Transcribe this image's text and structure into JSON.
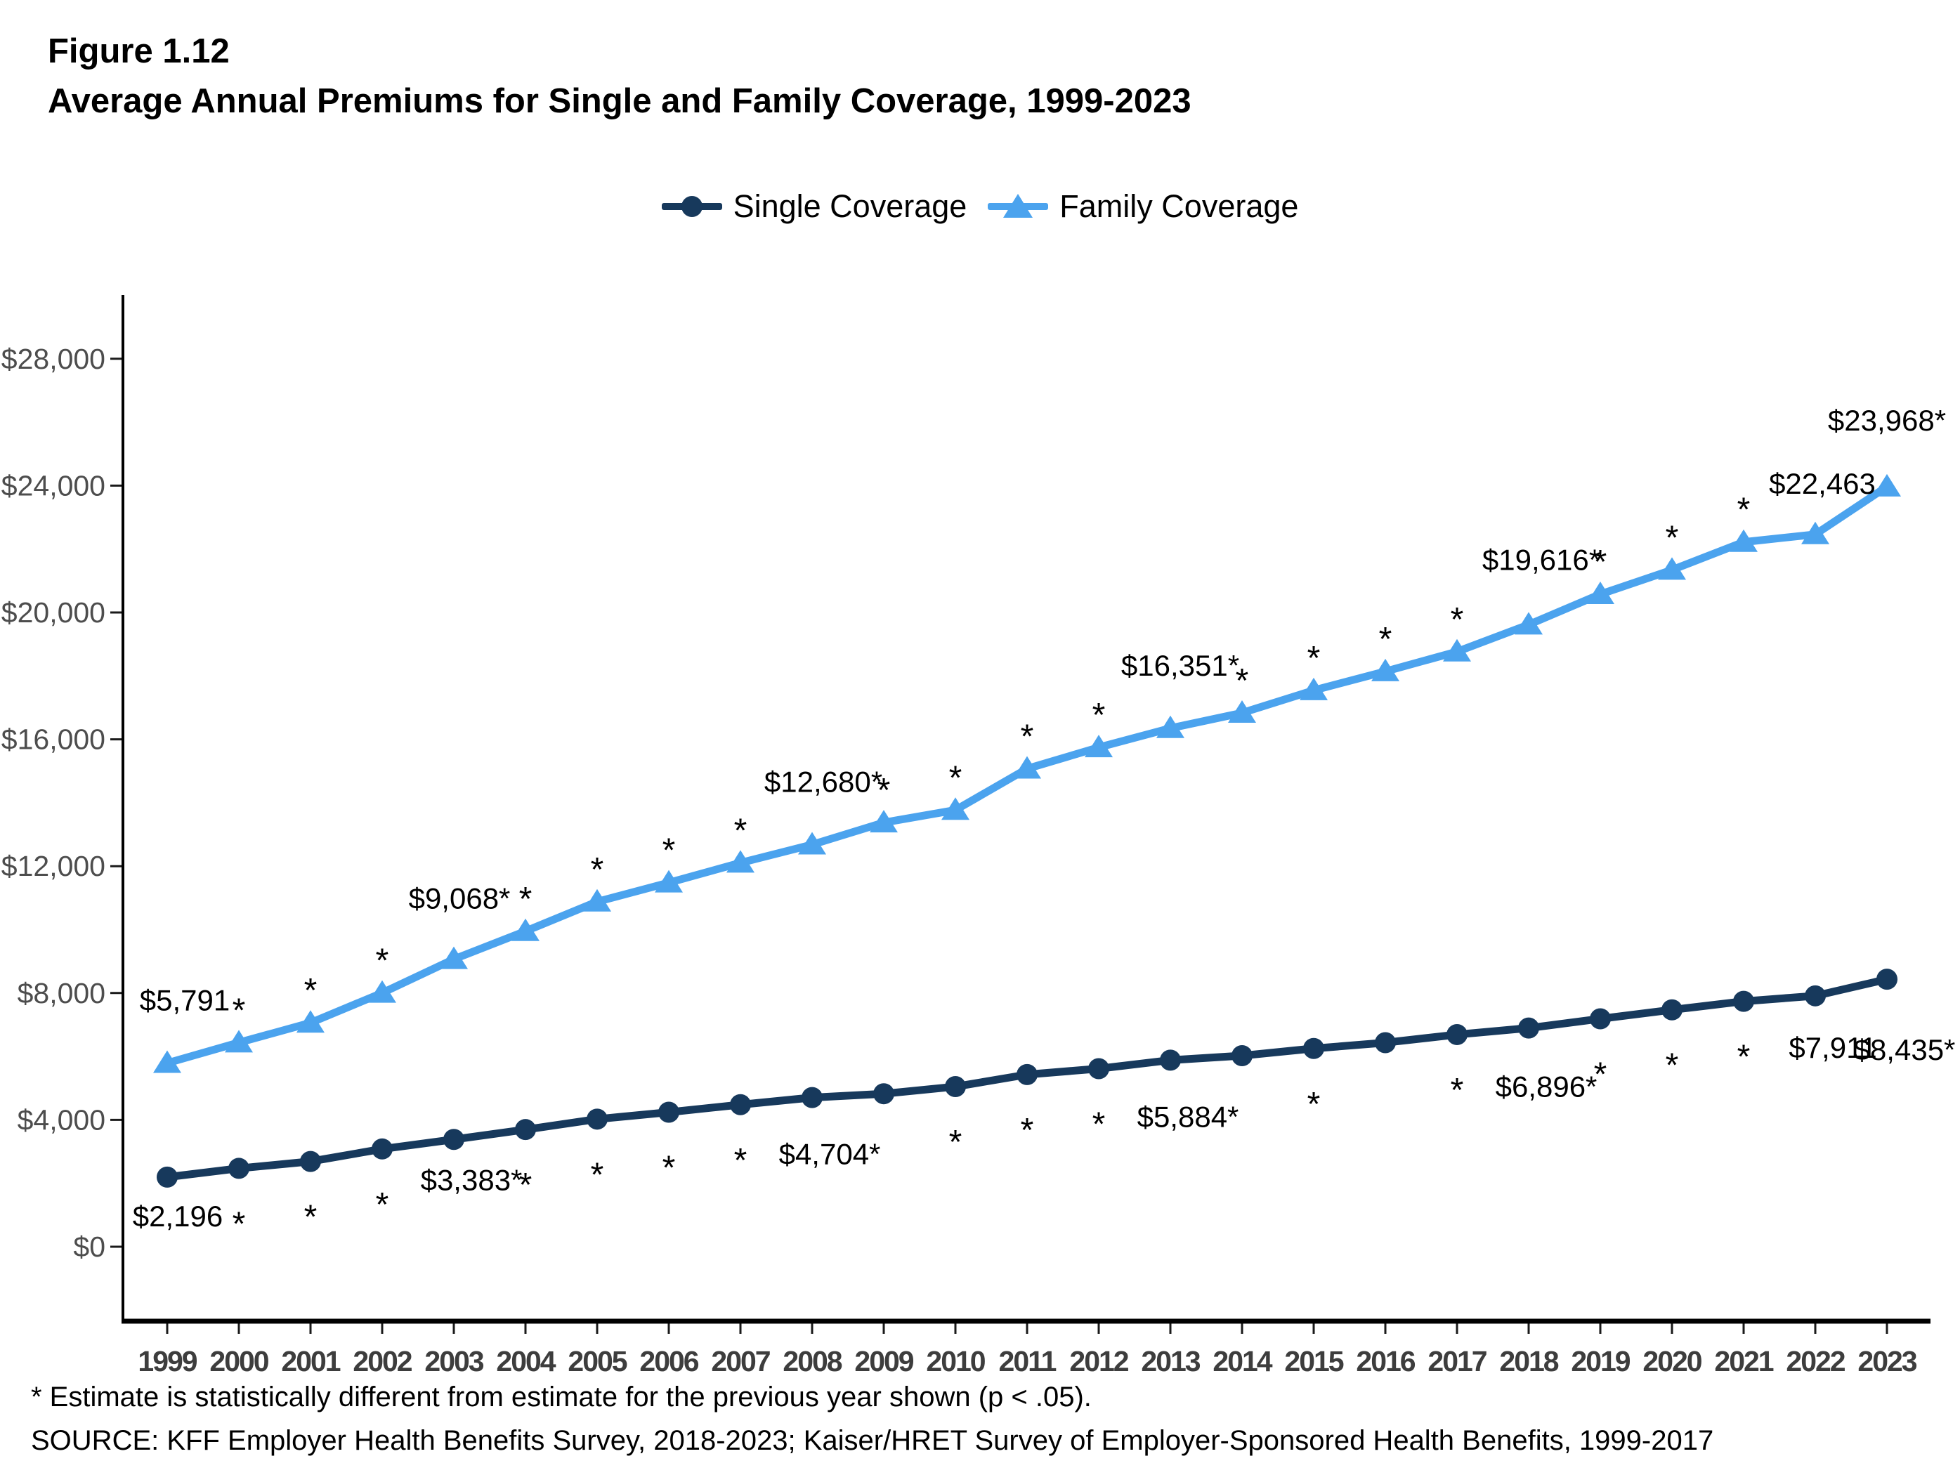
{
  "figure": {
    "number": "Figure 1.12",
    "title": "Average Annual Premiums for Single and Family Coverage, 1999-2023"
  },
  "legend": [
    {
      "label": "Single Coverage",
      "marker": "circle",
      "color": "#17395C"
    },
    {
      "label": "Family Coverage",
      "marker": "triangle",
      "color": "#4BA3EE"
    }
  ],
  "footnotes": {
    "line1": "* Estimate is statistically different from estimate for the previous year shown (p < .05).",
    "line2": "SOURCE: KFF Employer Health Benefits Survey, 2018-2023; Kaiser/HRET Survey of Employer-Sponsored Health Benefits, 1999-2017"
  },
  "chart_data": {
    "type": "line",
    "title": "Average Annual Premiums for Single and Family Coverage, 1999-2023",
    "xlabel": "",
    "ylabel": "",
    "grid": false,
    "legend_position": "top",
    "x": [
      1999,
      2000,
      2001,
      2002,
      2003,
      2004,
      2005,
      2006,
      2007,
      2008,
      2009,
      2010,
      2011,
      2012,
      2013,
      2014,
      2015,
      2016,
      2017,
      2018,
      2019,
      2020,
      2021,
      2022,
      2023
    ],
    "ylim": [
      0,
      30000
    ],
    "yticks": [
      0,
      4000,
      8000,
      12000,
      16000,
      20000,
      24000,
      28000
    ],
    "ytick_labels": [
      "$0",
      "$4,000",
      "$8,000",
      "$12,000",
      "$16,000",
      "$20,000",
      "$24,000",
      "$28,000"
    ],
    "significance_marker": "*",
    "series": [
      {
        "name": "Single Coverage",
        "color": "#17395C",
        "marker": "circle",
        "values": [
          2196,
          2471,
          2689,
          3083,
          3383,
          3695,
          4024,
          4242,
          4479,
          4704,
          4824,
          5049,
          5429,
          5615,
          5884,
          6025,
          6251,
          6435,
          6690,
          6896,
          7188,
          7470,
          7739,
          7911,
          8435
        ],
        "significant_vs_prior_year": [
          false,
          true,
          true,
          true,
          true,
          true,
          true,
          true,
          true,
          true,
          false,
          true,
          true,
          true,
          true,
          false,
          true,
          false,
          true,
          true,
          true,
          true,
          true,
          false,
          true
        ],
        "point_labels": [
          {
            "year": 1999,
            "text": "$2,196"
          },
          {
            "year": 2003,
            "text": "$3,383*"
          },
          {
            "year": 2008,
            "text": "$4,704*"
          },
          {
            "year": 2013,
            "text": "$5,884*"
          },
          {
            "year": 2018,
            "text": "$6,896*"
          },
          {
            "year": 2022,
            "text": "$7,911"
          },
          {
            "year": 2023,
            "text": "$8,435*"
          }
        ]
      },
      {
        "name": "Family Coverage",
        "color": "#4BA3EE",
        "marker": "triangle",
        "values": [
          5791,
          6438,
          7061,
          8003,
          9068,
          9950,
          10880,
          11480,
          12106,
          12680,
          13375,
          13770,
          15073,
          15745,
          16351,
          16834,
          17545,
          18142,
          18764,
          19616,
          20576,
          21342,
          22221,
          22463,
          23968
        ],
        "significant_vs_prior_year": [
          false,
          true,
          true,
          true,
          true,
          true,
          true,
          true,
          true,
          true,
          true,
          true,
          true,
          true,
          true,
          true,
          true,
          true,
          true,
          true,
          true,
          true,
          true,
          false,
          true
        ],
        "point_labels": [
          {
            "year": 1999,
            "text": "$5,791"
          },
          {
            "year": 2003,
            "text": "$9,068*"
          },
          {
            "year": 2008,
            "text": "$12,680*"
          },
          {
            "year": 2013,
            "text": "$16,351*"
          },
          {
            "year": 2018,
            "text": "$19,616*"
          },
          {
            "year": 2022,
            "text": "$22,463"
          },
          {
            "year": 2023,
            "text": "$23,968*"
          }
        ]
      }
    ]
  }
}
